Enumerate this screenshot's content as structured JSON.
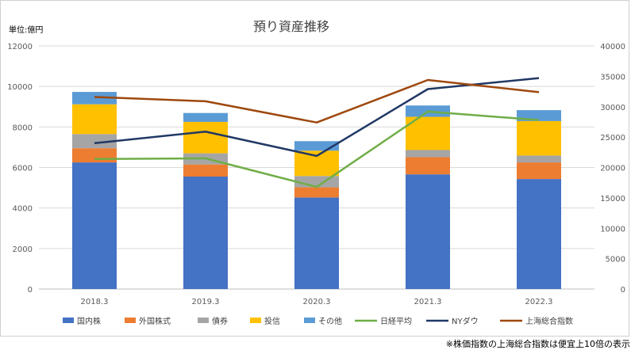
{
  "chart_data": {
    "type": "bar",
    "title": "預り資産推移",
    "unit_label": "単位:億円",
    "categories": [
      "2018.3",
      "2019.3",
      "2020.3",
      "2021.3",
      "2022.3"
    ],
    "ylim_left": [
      0,
      12000
    ],
    "yticks_left": [
      0,
      2000,
      4000,
      6000,
      8000,
      10000,
      12000
    ],
    "ylim_right": [
      0,
      40000
    ],
    "yticks_right": [
      0,
      5000,
      10000,
      15000,
      20000,
      25000,
      30000,
      35000,
      40000
    ],
    "grid": "horizontal",
    "legend_position": "bottom",
    "bar_series": [
      {
        "name": "国内株",
        "color": "#4472C4",
        "values": [
          6250,
          5550,
          4520,
          5660,
          5430
        ]
      },
      {
        "name": "外国株式",
        "color": "#ED7D31",
        "values": [
          700,
          600,
          500,
          850,
          820
        ]
      },
      {
        "name": "債券",
        "color": "#A5A5A5",
        "values": [
          700,
          550,
          560,
          350,
          340
        ]
      },
      {
        "name": "投信",
        "color": "#FFC000",
        "values": [
          1470,
          1550,
          1250,
          1640,
          1700
        ]
      },
      {
        "name": "その他",
        "color": "#5B9BD5",
        "values": [
          610,
          440,
          470,
          560,
          540
        ]
      }
    ],
    "line_series": [
      {
        "name": "日経平均",
        "color": "#70AD47",
        "axis": "right",
        "values": [
          21400,
          21500,
          16800,
          29200,
          27800
        ]
      },
      {
        "name": "NYダウ",
        "color": "#203864",
        "axis": "right",
        "values": [
          24000,
          25900,
          21900,
          32900,
          34700
        ]
      },
      {
        "name": "上海総合指数",
        "color": "#9E480E",
        "axis": "right",
        "values": [
          31600,
          30900,
          27400,
          34400,
          32400
        ]
      }
    ]
  },
  "footnote": "※株価指数の上海総合指数は便宜上10倍の表示"
}
